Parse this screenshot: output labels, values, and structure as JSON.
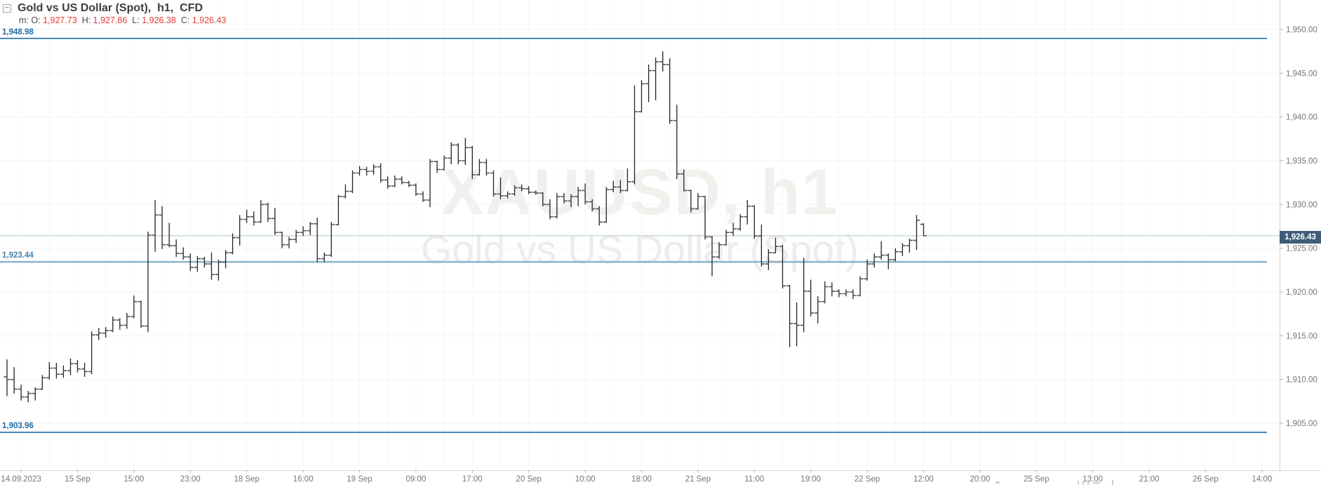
{
  "header": {
    "collapse_icon": "minus-box",
    "collapse_glyph": "−",
    "title": "Gold vs US Dollar (Spot),  h1,  CFD",
    "ohlc_row": {
      "prefix": "m:",
      "fields": [
        {
          "label": "O:",
          "value": "1,927.73"
        },
        {
          "label": "H:",
          "value": "1,927.86"
        },
        {
          "label": "L:",
          "value": "1,926.38"
        },
        {
          "label": "C:",
          "value": "1,926.43"
        }
      ]
    }
  },
  "watermark": {
    "line1": "XAUUSD, h1",
    "line2": "Gold vs US Dollar (Spot)"
  },
  "colors": {
    "background": "#ffffff",
    "title_text": "#3d3d3d",
    "ohlc_value_red": "#e23c3a",
    "ohlc_label_gray": "#4a4a4a",
    "axis_text": "#757575",
    "axis_line": "#cfcfcf",
    "grid_horizontal": "#f3f3f3",
    "grid_vertical": "#f7f7f7",
    "bar_stem": "#222222",
    "bar_tick": "#555555",
    "level_strong_blue": "#1e6da7",
    "level_soft_blue": "#8db2cd",
    "level_soft_label": "#4a83aa",
    "current_price_line": "#bcd0df",
    "badge_background": "#3f5d7a",
    "badge_text": "#ffffff",
    "watermark_line1": "#f2f0ed",
    "watermark_line2": "#ececec"
  },
  "chart_data": {
    "type": "ohlc-bar",
    "symbol": "XAUUSD",
    "instrument": "Gold vs US Dollar (Spot)",
    "interval": "h1",
    "market": "CFD",
    "title": "Gold vs US Dollar (Spot), h1, CFD",
    "legend_position": "none",
    "grid": true,
    "price_axis": {
      "side": "right",
      "ticks": [
        {
          "text": "1,950.00",
          "value": 1950
        },
        {
          "text": "1,945.00",
          "value": 1945
        },
        {
          "text": "1,940.00",
          "value": 1940
        },
        {
          "text": "1,935.00",
          "value": 1935
        },
        {
          "text": "1,930.00",
          "value": 1930
        },
        {
          "text": "1,925.00",
          "value": 1925
        },
        {
          "text": "1,920.00",
          "value": 1920
        },
        {
          "text": "1,915.00",
          "value": 1915
        },
        {
          "text": "1,910.00",
          "value": 1910
        },
        {
          "text": "1,905.00",
          "value": 1905
        }
      ],
      "visible_range": [
        1899.5,
        1953.4
      ]
    },
    "time_axis": {
      "side": "bottom",
      "labels": [
        "14.09.2023",
        "15 Sep",
        "15:00",
        "23:00",
        "18 Sep",
        "16:00",
        "19 Sep",
        "09:00",
        "17:00",
        "20 Sep",
        "10:00",
        "18:00",
        "21 Sep",
        "11:00",
        "19:00",
        "22 Sep",
        "12:00",
        "20:00",
        "25 Sep",
        "13:00",
        "21:00",
        "26 Sep",
        "14:00"
      ],
      "first_label_bar_index": 2,
      "bars_per_label": 8
    },
    "levels": [
      {
        "text": "1,948.98",
        "value": 1948.98,
        "style": "strong"
      },
      {
        "text": "1,923.44",
        "value": 1923.44,
        "style": "soft"
      },
      {
        "text": "1,903.96",
        "value": 1903.96,
        "style": "strong"
      }
    ],
    "current_price": {
      "text": "1,926.43",
      "value": 1926.43
    },
    "last_bar": {
      "open": 1927.73,
      "high": 1927.86,
      "low": 1926.38,
      "close": 1926.43
    },
    "bars": [
      [
        1910.3,
        1912.3,
        1908.1,
        1910.0
      ],
      [
        1910.0,
        1911.4,
        1908.4,
        1908.9
      ],
      [
        1908.9,
        1909.4,
        1907.6,
        1908.0
      ],
      [
        1908.0,
        1908.7,
        1907.4,
        1908.4
      ],
      [
        1908.4,
        1909.1,
        1907.6,
        1908.9
      ],
      [
        1908.9,
        1910.5,
        1908.8,
        1910.2
      ],
      [
        1910.2,
        1912.0,
        1910.0,
        1911.3
      ],
      [
        1911.3,
        1911.9,
        1910.1,
        1910.6
      ],
      [
        1910.6,
        1911.6,
        1910.2,
        1911.0
      ],
      [
        1911.0,
        1912.4,
        1910.5,
        1911.8
      ],
      [
        1911.8,
        1912.2,
        1910.8,
        1911.2
      ],
      [
        1911.2,
        1911.9,
        1910.3,
        1910.9
      ],
      [
        1910.9,
        1915.5,
        1910.6,
        1915.1
      ],
      [
        1915.1,
        1915.9,
        1914.5,
        1915.3
      ],
      [
        1915.3,
        1916.0,
        1914.8,
        1915.6
      ],
      [
        1915.6,
        1917.2,
        1915.4,
        1916.8
      ],
      [
        1916.8,
        1917.0,
        1915.7,
        1916.2
      ],
      [
        1916.2,
        1917.6,
        1915.8,
        1917.2
      ],
      [
        1917.2,
        1919.6,
        1917.0,
        1918.9
      ],
      [
        1918.9,
        1919.0,
        1915.9,
        1916.1
      ],
      [
        1916.1,
        1926.9,
        1915.4,
        1926.5
      ],
      [
        1926.5,
        1930.5,
        1924.6,
        1928.8
      ],
      [
        1928.8,
        1929.8,
        1924.9,
        1925.4
      ],
      [
        1925.4,
        1927.9,
        1925.1,
        1925.3
      ],
      [
        1925.3,
        1926.0,
        1924.0,
        1924.4
      ],
      [
        1924.4,
        1925.1,
        1923.7,
        1924.0
      ],
      [
        1924.0,
        1924.4,
        1922.4,
        1922.8
      ],
      [
        1922.8,
        1924.1,
        1922.3,
        1923.8
      ],
      [
        1923.8,
        1924.0,
        1922.8,
        1923.2
      ],
      [
        1923.2,
        1924.5,
        1921.4,
        1922.0
      ],
      [
        1922.0,
        1923.7,
        1921.3,
        1923.4
      ],
      [
        1923.4,
        1924.8,
        1922.7,
        1924.5
      ],
      [
        1924.5,
        1926.7,
        1924.3,
        1926.2
      ],
      [
        1926.2,
        1928.8,
        1925.3,
        1928.3
      ],
      [
        1928.3,
        1929.4,
        1927.9,
        1928.6
      ],
      [
        1928.6,
        1929.2,
        1927.6,
        1928.0
      ],
      [
        1928.0,
        1930.5,
        1927.9,
        1930.0
      ],
      [
        1930.0,
        1930.2,
        1928.0,
        1928.4
      ],
      [
        1928.4,
        1929.6,
        1926.5,
        1926.8
      ],
      [
        1926.8,
        1926.9,
        1925.0,
        1925.4
      ],
      [
        1925.4,
        1926.3,
        1925.0,
        1926.0
      ],
      [
        1926.0,
        1927.1,
        1925.6,
        1926.8
      ],
      [
        1926.8,
        1927.5,
        1926.4,
        1927.0
      ],
      [
        1927.0,
        1928.0,
        1926.5,
        1927.8
      ],
      [
        1927.8,
        1928.5,
        1923.4,
        1923.8
      ],
      [
        1923.8,
        1924.5,
        1923.4,
        1924.2
      ],
      [
        1924.2,
        1928.0,
        1924.0,
        1927.7
      ],
      [
        1927.7,
        1931.1,
        1927.6,
        1930.9
      ],
      [
        1930.9,
        1932.3,
        1930.7,
        1931.5
      ],
      [
        1931.5,
        1933.9,
        1931.3,
        1933.6
      ],
      [
        1933.6,
        1934.4,
        1933.3,
        1934.0
      ],
      [
        1934.0,
        1934.3,
        1933.3,
        1933.8
      ],
      [
        1933.8,
        1934.6,
        1933.4,
        1934.3
      ],
      [
        1934.3,
        1934.7,
        1932.5,
        1932.8
      ],
      [
        1932.8,
        1933.2,
        1931.8,
        1932.1
      ],
      [
        1932.1,
        1933.3,
        1932.0,
        1932.9
      ],
      [
        1932.9,
        1933.2,
        1932.3,
        1932.5
      ],
      [
        1932.5,
        1932.7,
        1932.0,
        1932.2
      ],
      [
        1932.2,
        1932.4,
        1931.0,
        1931.2
      ],
      [
        1931.2,
        1931.5,
        1930.3,
        1930.5
      ],
      [
        1930.5,
        1935.2,
        1929.7,
        1934.9
      ],
      [
        1934.9,
        1935.0,
        1933.6,
        1934.0
      ],
      [
        1934.0,
        1935.6,
        1933.9,
        1935.3
      ],
      [
        1935.3,
        1937.1,
        1934.6,
        1936.8
      ],
      [
        1936.8,
        1937.0,
        1934.6,
        1935.0
      ],
      [
        1935.0,
        1937.6,
        1934.5,
        1936.5
      ],
      [
        1936.5,
        1936.7,
        1932.9,
        1933.4
      ],
      [
        1933.4,
        1935.2,
        1933.3,
        1934.8
      ],
      [
        1934.8,
        1935.2,
        1933.3,
        1933.6
      ],
      [
        1933.6,
        1933.9,
        1930.9,
        1931.2
      ],
      [
        1931.2,
        1933.1,
        1930.6,
        1931.0
      ],
      [
        1931.0,
        1931.5,
        1930.7,
        1931.2
      ],
      [
        1931.2,
        1932.2,
        1931.0,
        1931.9
      ],
      [
        1931.9,
        1932.3,
        1931.5,
        1931.8
      ],
      [
        1931.8,
        1932.1,
        1931.2,
        1931.4
      ],
      [
        1931.4,
        1931.6,
        1931.1,
        1931.3
      ],
      [
        1931.3,
        1931.4,
        1929.8,
        1930.0
      ],
      [
        1930.0,
        1930.6,
        1928.3,
        1928.6
      ],
      [
        1928.6,
        1931.3,
        1928.4,
        1930.9
      ],
      [
        1930.9,
        1931.3,
        1930.1,
        1930.4
      ],
      [
        1930.4,
        1931.2,
        1929.7,
        1930.9
      ],
      [
        1930.9,
        1932.0,
        1929.8,
        1931.6
      ],
      [
        1931.6,
        1932.4,
        1930.0,
        1930.3
      ],
      [
        1930.3,
        1930.6,
        1929.2,
        1929.5
      ],
      [
        1929.5,
        1929.8,
        1927.6,
        1928.0
      ],
      [
        1928.0,
        1932.0,
        1927.9,
        1931.7
      ],
      [
        1931.7,
        1932.7,
        1931.4,
        1932.0
      ],
      [
        1932.0,
        1932.8,
        1931.3,
        1931.6
      ],
      [
        1931.6,
        1934.1,
        1931.5,
        1932.6
      ],
      [
        1932.6,
        1943.6,
        1932.3,
        1940.6
      ],
      [
        1940.6,
        1944.2,
        1940.5,
        1943.8
      ],
      [
        1943.8,
        1946.0,
        1941.7,
        1945.3
      ],
      [
        1945.3,
        1946.8,
        1941.9,
        1946.3
      ],
      [
        1946.3,
        1947.5,
        1945.2,
        1946.0
      ],
      [
        1946.0,
        1946.7,
        1939.2,
        1939.6
      ],
      [
        1939.6,
        1941.4,
        1932.9,
        1933.5
      ],
      [
        1933.5,
        1934.0,
        1931.5,
        1931.6
      ],
      [
        1931.6,
        1931.7,
        1929.1,
        1929.5
      ],
      [
        1929.5,
        1931.3,
        1929.4,
        1930.9
      ],
      [
        1930.9,
        1931.0,
        1926.0,
        1926.3
      ],
      [
        1926.3,
        1926.4,
        1921.8,
        1924.0
      ],
      [
        1924.0,
        1925.7,
        1923.8,
        1925.4
      ],
      [
        1925.4,
        1927.1,
        1925.3,
        1926.8
      ],
      [
        1926.8,
        1927.9,
        1926.4,
        1927.2
      ],
      [
        1927.2,
        1928.9,
        1927.0,
        1928.6
      ],
      [
        1928.6,
        1930.5,
        1927.7,
        1929.8
      ],
      [
        1929.8,
        1929.9,
        1926.1,
        1926.4
      ],
      [
        1926.4,
        1927.7,
        1922.9,
        1923.2
      ],
      [
        1923.2,
        1924.9,
        1922.5,
        1924.5
      ],
      [
        1924.5,
        1926.2,
        1924.4,
        1925.2
      ],
      [
        1925.2,
        1925.4,
        1920.4,
        1920.7
      ],
      [
        1920.7,
        1920.8,
        1913.7,
        1916.4
      ],
      [
        1916.4,
        1918.8,
        1913.8,
        1916.2
      ],
      [
        1916.2,
        1923.9,
        1915.4,
        1920.1
      ],
      [
        1920.1,
        1921.4,
        1917.2,
        1917.6
      ],
      [
        1917.6,
        1919.5,
        1916.4,
        1918.9
      ],
      [
        1918.9,
        1921.2,
        1918.7,
        1920.6
      ],
      [
        1920.6,
        1921.1,
        1919.5,
        1920.1
      ],
      [
        1920.1,
        1920.3,
        1919.4,
        1919.8
      ],
      [
        1919.8,
        1920.3,
        1919.5,
        1920.0
      ],
      [
        1920.0,
        1920.3,
        1919.2,
        1919.6
      ],
      [
        1919.6,
        1921.8,
        1919.5,
        1921.5
      ],
      [
        1921.5,
        1923.7,
        1921.3,
        1923.2
      ],
      [
        1923.2,
        1924.4,
        1922.8,
        1924.0
      ],
      [
        1924.0,
        1925.8,
        1923.7,
        1924.2
      ],
      [
        1924.2,
        1924.4,
        1922.6,
        1923.7
      ],
      [
        1923.7,
        1925.0,
        1923.5,
        1924.6
      ],
      [
        1924.6,
        1925.6,
        1924.1,
        1925.3
      ],
      [
        1925.3,
        1926.1,
        1924.5,
        1925.9
      ],
      [
        1925.9,
        1928.8,
        1924.8,
        1928.2
      ],
      [
        1927.73,
        1927.86,
        1926.38,
        1926.43
      ]
    ]
  }
}
